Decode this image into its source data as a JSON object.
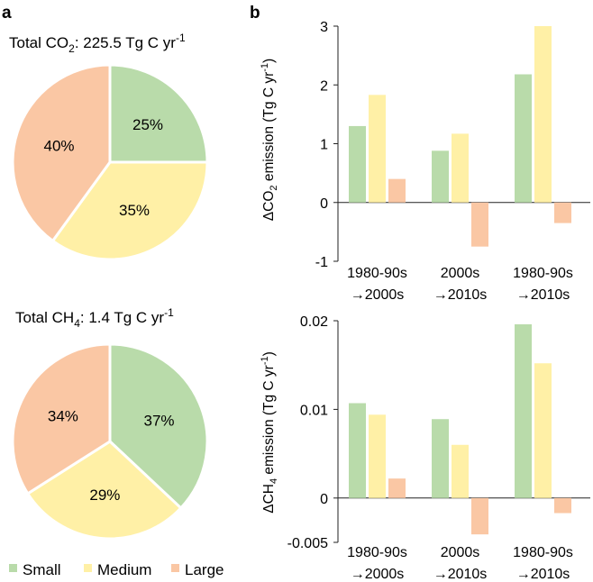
{
  "panel_labels": {
    "a": "a",
    "b": "b"
  },
  "legend": [
    {
      "label": "Small",
      "color": "#b9dbaa"
    },
    {
      "label": "Medium",
      "color": "#fff0a6"
    },
    {
      "label": "Large",
      "color": "#fac7a4"
    }
  ],
  "chart_data": [
    {
      "type": "pie",
      "title": "Total CO2: 225.5 Tg C yr-1",
      "title_parts": {
        "prefix": "Total CO",
        "sub": "2",
        "middle": ": 225.5 Tg C yr",
        "sup": "-1"
      },
      "slices": [
        {
          "name": "Small",
          "value": 25,
          "label": "25%"
        },
        {
          "name": "Medium",
          "value": 35,
          "label": "35%"
        },
        {
          "name": "Large",
          "value": 40,
          "label": "40%"
        }
      ]
    },
    {
      "type": "pie",
      "title": "Total CH4: 1.4 Tg C yr-1",
      "title_parts": {
        "prefix": "Total CH",
        "sub": "4",
        "middle": ": 1.4 Tg C yr",
        "sup": "-1"
      },
      "slices": [
        {
          "name": "Small",
          "value": 37,
          "label": "37%"
        },
        {
          "name": "Medium",
          "value": 29,
          "label": "29%"
        },
        {
          "name": "Large",
          "value": 34,
          "label": "34%"
        }
      ]
    },
    {
      "type": "bar",
      "ylabel": "ΔCO2 emission (Tg C yr-1)",
      "ylabel_parts": {
        "prefix": "ΔCO",
        "sub": "2",
        "middle": " emission (Tg C yr",
        "sup": "-1",
        "suffix": ")"
      },
      "ylim": [
        -1,
        3
      ],
      "yticks": [
        -1,
        0,
        1,
        2,
        3
      ],
      "ytick_labels": [
        "-1",
        "0",
        "1",
        "2",
        "3"
      ],
      "categories": [
        {
          "line1": "1980-90s",
          "line2": "→2000s"
        },
        {
          "line1": "2000s",
          "line2": "→2010s"
        },
        {
          "line1": "1980-90s",
          "line2": "→2010s"
        }
      ],
      "series": [
        {
          "name": "Small",
          "values": [
            1.3,
            0.88,
            2.18
          ]
        },
        {
          "name": "Medium",
          "values": [
            1.83,
            1.17,
            3.0
          ]
        },
        {
          "name": "Large",
          "values": [
            0.4,
            -0.75,
            -0.35
          ]
        }
      ]
    },
    {
      "type": "bar",
      "ylabel": "ΔCH4 emission (Tg C yr-1)",
      "ylabel_parts": {
        "prefix": "ΔCH",
        "sub": "4",
        "middle": " emission (Tg C yr",
        "sup": "-1",
        "suffix": ")"
      },
      "ylim": [
        -0.005,
        0.02
      ],
      "yticks": [
        -0.005,
        0,
        0.01,
        0.02
      ],
      "ytick_labels": [
        "-0.005",
        "0",
        "0.01",
        "0.02"
      ],
      "categories": [
        {
          "line1": "1980-90s",
          "line2": "→2000s"
        },
        {
          "line1": "2000s",
          "line2": "→2010s"
        },
        {
          "line1": "1980-90s",
          "line2": "→2010s"
        }
      ],
      "series": [
        {
          "name": "Small",
          "values": [
            0.0107,
            0.0089,
            0.0196
          ]
        },
        {
          "name": "Medium",
          "values": [
            0.0094,
            0.006,
            0.0152
          ]
        },
        {
          "name": "Large",
          "values": [
            0.0022,
            -0.0041,
            -0.0017
          ]
        }
      ]
    }
  ]
}
